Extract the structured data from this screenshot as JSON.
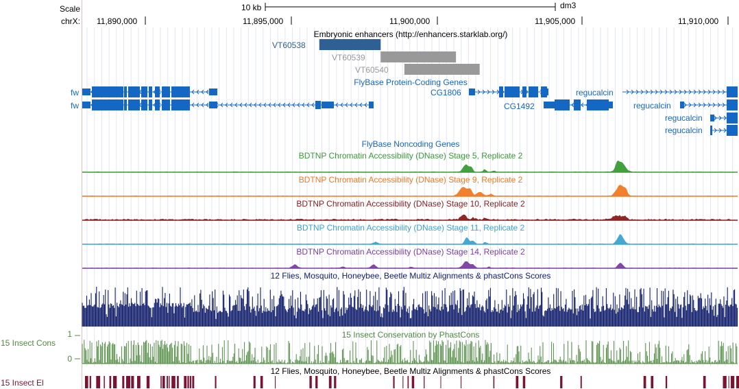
{
  "browser": {
    "scale_label": "Scale",
    "chrom_label": "chrX:",
    "scale_bar_text": "10 kb",
    "assembly": "dm3",
    "positions": [
      "11,890,000",
      "11,895,000",
      "11,900,000",
      "11,905,000",
      "11,910,000"
    ],
    "x_range": [
      11887100,
      11910600
    ]
  },
  "tracks": {
    "enhancers": {
      "title": "Embryonic enhancers (http://enhancers.starklab.org/)",
      "items": [
        {
          "name": "VT60538",
          "start": 11895600,
          "end": 11897800,
          "color": "#2e5f95"
        },
        {
          "name": "VT60539",
          "start": 11897800,
          "end": 11900500,
          "color": "#999999"
        },
        {
          "name": "VT60540",
          "start": 11898650,
          "end": 11901350,
          "color": "#999999"
        }
      ]
    },
    "coding_genes": {
      "title": "FlyBase Protein-Coding Genes",
      "color": "#1467c2",
      "labels": {
        "fw1": "fw",
        "fw2": "fw",
        "cg1806": "CG1806",
        "cg1492": "CG1492",
        "reg1": "regucalcin",
        "reg2": "regucalcin",
        "reg3": "regucalcin",
        "reg4": "regucalcin"
      }
    },
    "noncoding_genes": {
      "title": "FlyBase Noncoding Genes"
    },
    "dnase": [
      {
        "title": "BDTNP Chromatin Accessibility (DNase) Stage 5, Replicate 2",
        "color": "#3a9b35"
      },
      {
        "title": "BDTNP Chromatin Accessibility (DNase) Stage 9, Replicate 2",
        "color": "#f07a23"
      },
      {
        "title": "BDTNP Chromatin Accessibility (DNase) Stage 10, Replicate 2",
        "color": "#8b1a1a"
      },
      {
        "title": "BDTNP Chromatin Accessibility (DNase) Stage 11, Replicate 2",
        "color": "#3ba3d0"
      },
      {
        "title": "BDTNP Chromatin Accessibility (DNase) Stage 14, Replicate 2",
        "color": "#7a3fa0"
      }
    ],
    "multiz": {
      "title": "12 Flies, Mosquito, Honeybee, Beetle Multiz Alignments & phastCons Scores",
      "color": "#0f1c6b"
    },
    "phastcons": {
      "title": "15 Insect Conservation by PhastCons",
      "side_label": "15 Insect Cons",
      "max_label": "1",
      "min_label": "0",
      "color": "#4f8a3f"
    },
    "elements": {
      "title": "12 Flies, Mosquito, Honeybee, Beetle Multiz Alignments & phastCons Scores",
      "side_label": "15 Insect El",
      "color": "#7a1531"
    }
  }
}
